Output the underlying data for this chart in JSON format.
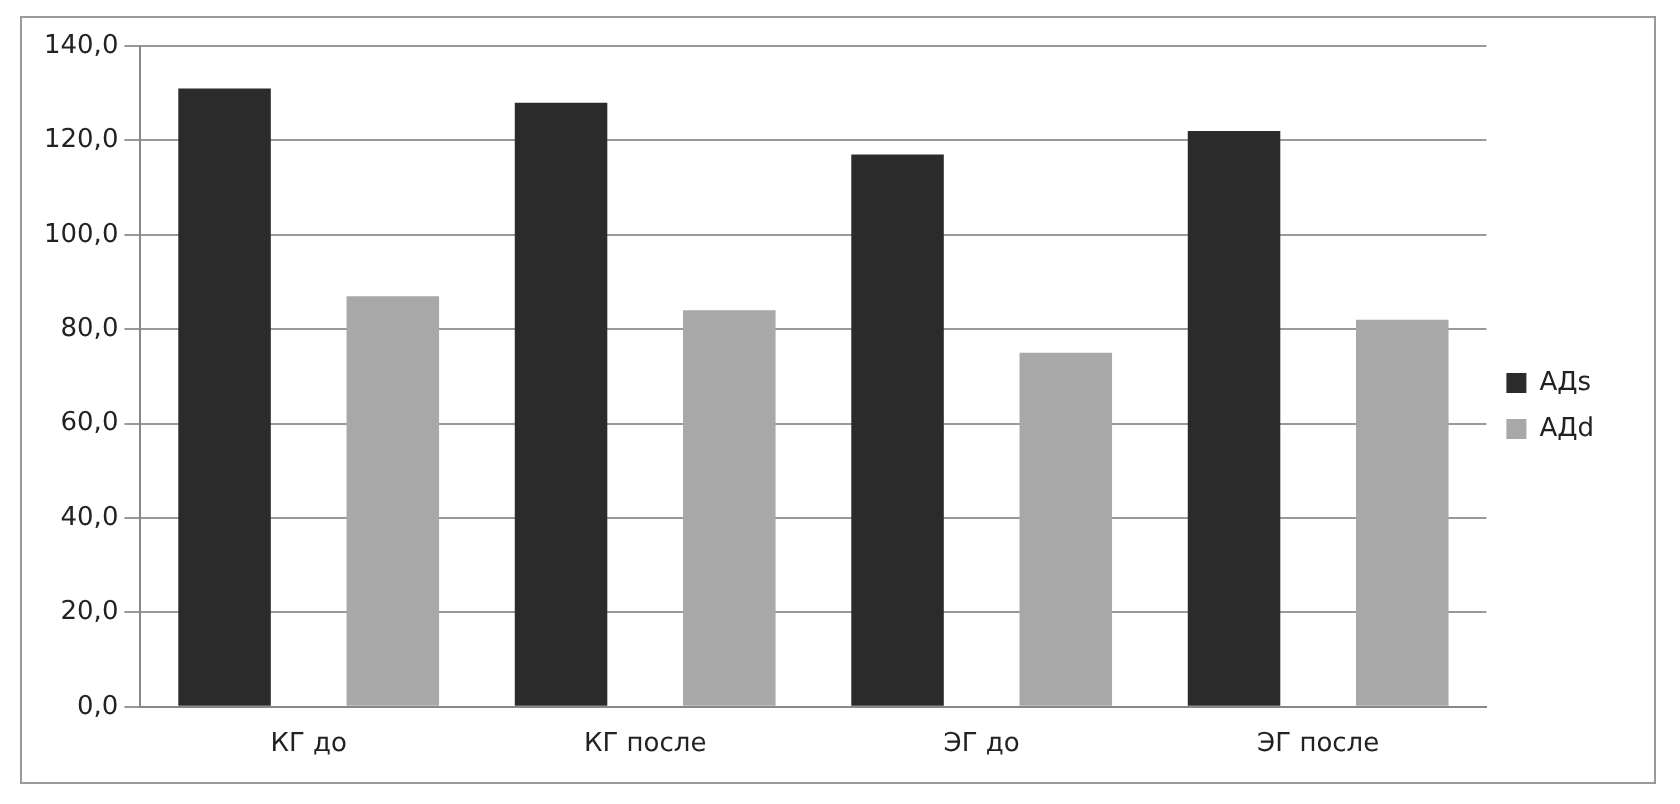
{
  "chart_data": {
    "type": "bar",
    "categories": [
      "КГ до",
      "КГ после",
      "ЭГ до",
      "ЭГ после"
    ],
    "series": [
      {
        "name": "АДs",
        "color": "#2b2b2b",
        "values": [
          131,
          128,
          117,
          122
        ]
      },
      {
        "name": "АДd",
        "color": "#a8a8a8",
        "values": [
          87,
          84,
          75,
          82
        ]
      }
    ],
    "ylim": [
      0,
      140
    ],
    "yticks": [
      {
        "value": 0,
        "label": "0,0"
      },
      {
        "value": 20,
        "label": "20,0"
      },
      {
        "value": 40,
        "label": "40,0"
      },
      {
        "value": 60,
        "label": "60,0"
      },
      {
        "value": 80,
        "label": "80,0"
      },
      {
        "value": 100,
        "label": "100,0"
      },
      {
        "value": 120,
        "label": "120,0"
      },
      {
        "value": 140,
        "label": "140,0"
      }
    ],
    "grid": "y",
    "legend": "right"
  }
}
